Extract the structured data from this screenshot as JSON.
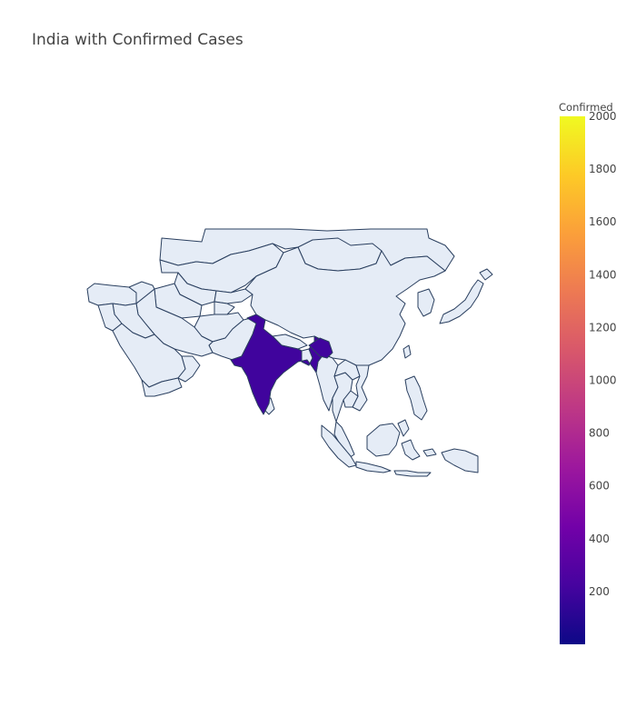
{
  "title": "India with Confirmed Cases",
  "colorbar": {
    "title": "Confirmed",
    "min": 0,
    "max": 2000,
    "ticks": [
      200,
      400,
      600,
      800,
      1000,
      1200,
      1400,
      1600,
      1800,
      2000
    ],
    "colorscale": [
      "#0d0887",
      "#46039f",
      "#7201a8",
      "#9c179e",
      "#bd3786",
      "#d8576b",
      "#ed7953",
      "#fb9f3a",
      "#fdca26",
      "#f0f921"
    ]
  },
  "map": {
    "region": "asia",
    "countries": [
      {
        "name": "India",
        "confirmed": 200
      }
    ],
    "base_color": "#e5ecf6",
    "border_color": "#2a3f5f"
  }
}
